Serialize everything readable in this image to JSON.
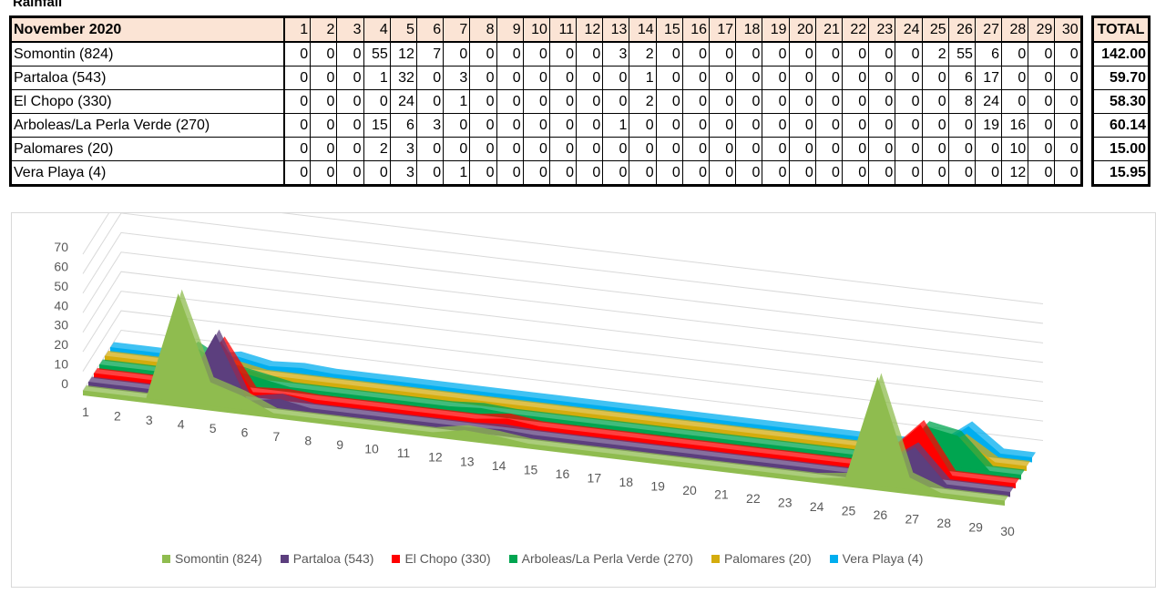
{
  "page_title": "Rainfall",
  "table": {
    "month_label": "November 2020",
    "total_label": "TOTAL",
    "days": [
      "1",
      "2",
      "3",
      "4",
      "5",
      "6",
      "7",
      "8",
      "9",
      "10",
      "11",
      "12",
      "13",
      "14",
      "15",
      "16",
      "17",
      "18",
      "19",
      "20",
      "21",
      "22",
      "23",
      "24",
      "25",
      "26",
      "27",
      "28",
      "29",
      "30"
    ],
    "rows": [
      {
        "name": "Somontin (824)",
        "values": [
          0,
          0,
          0,
          55,
          12,
          7,
          0,
          0,
          0,
          0,
          0,
          0,
          3,
          2,
          0,
          0,
          0,
          0,
          0,
          0,
          0,
          0,
          0,
          0,
          2,
          55,
          6,
          0,
          0,
          0
        ],
        "total": "142.00"
      },
      {
        "name": "Partaloa (543)",
        "values": [
          0,
          0,
          0,
          1,
          32,
          0,
          3,
          0,
          0,
          0,
          0,
          0,
          0,
          1,
          0,
          0,
          0,
          0,
          0,
          0,
          0,
          0,
          0,
          0,
          0,
          6,
          17,
          0,
          0,
          0
        ],
        "total": "59.70"
      },
      {
        "name": "El Chopo (330)",
        "values": [
          0,
          0,
          0,
          0,
          24,
          0,
          1,
          0,
          0,
          0,
          0,
          0,
          0,
          2,
          0,
          0,
          0,
          0,
          0,
          0,
          0,
          0,
          0,
          0,
          0,
          8,
          24,
          0,
          0,
          0
        ],
        "total": "58.30"
      },
      {
        "name": "Arboleas/La Perla Verde (270)",
        "values": [
          0,
          0,
          0,
          15,
          6,
          3,
          0,
          0,
          0,
          0,
          0,
          0,
          1,
          0,
          0,
          0,
          0,
          0,
          0,
          0,
          0,
          0,
          0,
          0,
          0,
          0,
          19,
          16,
          0,
          0
        ],
        "total": "60.14"
      },
      {
        "name": "Palomares (20)",
        "values": [
          0,
          0,
          0,
          2,
          3,
          0,
          0,
          0,
          0,
          0,
          0,
          0,
          0,
          0,
          0,
          0,
          0,
          0,
          0,
          0,
          0,
          0,
          0,
          0,
          0,
          0,
          0,
          10,
          0,
          0
        ],
        "total": "15.00"
      },
      {
        "name": "Vera Playa (4)",
        "values": [
          0,
          0,
          0,
          0,
          3,
          0,
          1,
          0,
          0,
          0,
          0,
          0,
          0,
          0,
          0,
          0,
          0,
          0,
          0,
          0,
          0,
          0,
          0,
          0,
          0,
          0,
          0,
          12,
          0,
          0
        ],
        "total": "15.95"
      }
    ]
  },
  "chart_data": {
    "type": "area",
    "x": [
      "1",
      "2",
      "3",
      "4",
      "5",
      "6",
      "7",
      "8",
      "9",
      "10",
      "11",
      "12",
      "13",
      "14",
      "15",
      "16",
      "17",
      "18",
      "19",
      "20",
      "21",
      "22",
      "23",
      "24",
      "25",
      "26",
      "27",
      "28",
      "29",
      "30"
    ],
    "ylim": [
      0,
      70
    ],
    "y_ticks": [
      "0",
      "10",
      "20",
      "30",
      "40",
      "50",
      "60",
      "70"
    ],
    "gridlines": true,
    "legend_position": "bottom",
    "series": [
      {
        "name": "Somontin (824)",
        "color": "#8fbc4f",
        "values": [
          0,
          0,
          0,
          55,
          12,
          7,
          0,
          0,
          0,
          0,
          0,
          0,
          3,
          2,
          0,
          0,
          0,
          0,
          0,
          0,
          0,
          0,
          0,
          0,
          2,
          55,
          6,
          0,
          0,
          0
        ]
      },
      {
        "name": "Partaloa (543)",
        "color": "#5c3f7e",
        "values": [
          0,
          0,
          0,
          1,
          32,
          0,
          3,
          0,
          0,
          0,
          0,
          0,
          0,
          1,
          0,
          0,
          0,
          0,
          0,
          0,
          0,
          0,
          0,
          0,
          0,
          6,
          17,
          0,
          0,
          0
        ]
      },
      {
        "name": "El Chopo (330)",
        "color": "#ff0000",
        "values": [
          0,
          0,
          0,
          0,
          24,
          0,
          1,
          0,
          0,
          0,
          0,
          0,
          0,
          2,
          0,
          0,
          0,
          0,
          0,
          0,
          0,
          0,
          0,
          0,
          0,
          8,
          24,
          0,
          0,
          0
        ]
      },
      {
        "name": "Arboleas/La Perla Verde (270)",
        "color": "#00a550",
        "values": [
          0,
          0,
          0,
          15,
          6,
          3,
          0,
          0,
          0,
          0,
          0,
          0,
          1,
          0,
          0,
          0,
          0,
          0,
          0,
          0,
          0,
          0,
          0,
          0,
          0,
          0,
          19,
          16,
          0,
          0
        ]
      },
      {
        "name": "Palomares (20)",
        "color": "#d4ac0d",
        "values": [
          0,
          0,
          0,
          2,
          3,
          0,
          0,
          0,
          0,
          0,
          0,
          0,
          0,
          0,
          0,
          0,
          0,
          0,
          0,
          0,
          0,
          0,
          0,
          0,
          0,
          0,
          0,
          10,
          0,
          0
        ]
      },
      {
        "name": "Vera Playa (4)",
        "color": "#00aeef",
        "values": [
          0,
          0,
          0,
          0,
          3,
          0,
          1,
          0,
          0,
          0,
          0,
          0,
          0,
          0,
          0,
          0,
          0,
          0,
          0,
          0,
          0,
          0,
          0,
          0,
          0,
          0,
          0,
          12,
          0,
          0
        ]
      }
    ]
  }
}
